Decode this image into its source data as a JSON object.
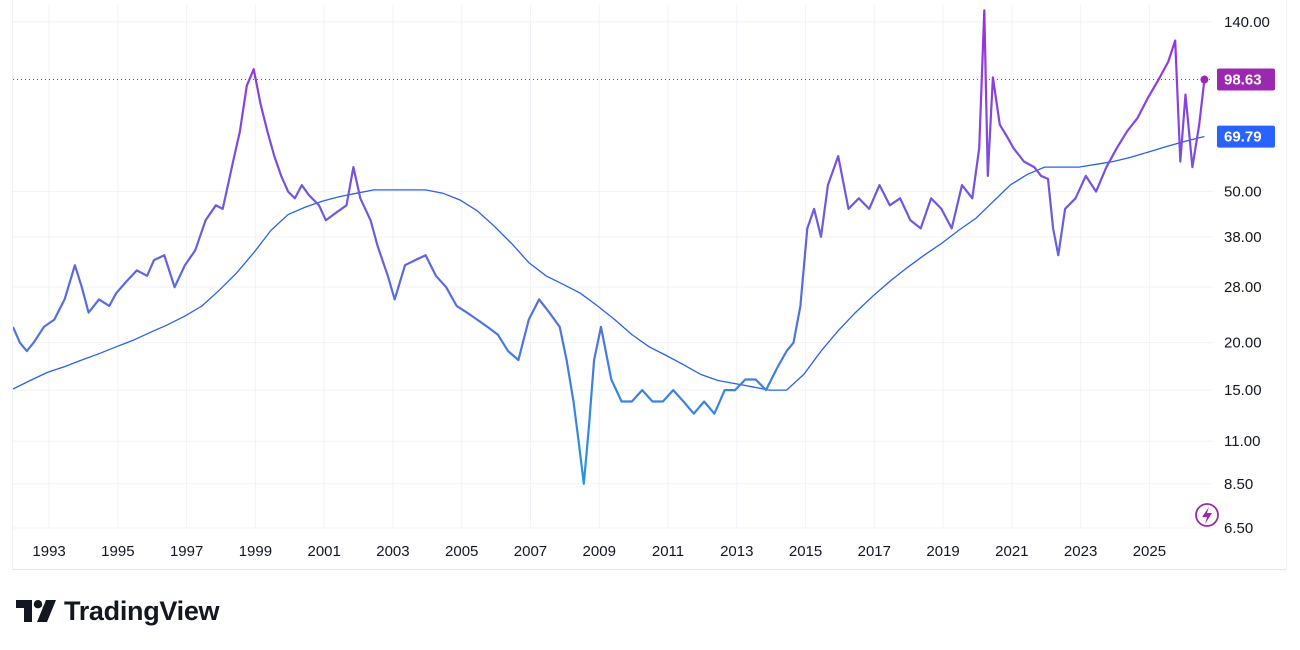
{
  "brand": {
    "name": "TradingView",
    "icon": "tradingview-logo-icon"
  },
  "colors": {
    "price_start": "#1e9be0",
    "price_mid": "#6a5ce0",
    "price_end": "#a22bdf",
    "ma": "#2862e8",
    "price_badge": "#9c27b0",
    "ma_badge": "#2962ff",
    "grid": "#f0f3fa"
  },
  "chart_data": {
    "type": "line",
    "y_scale": "log",
    "ylim": [
      6.5,
      155
    ],
    "xlim": [
      1992.0,
      2026.9
    ],
    "y_ticks": [
      "140.00",
      "98.63",
      "69.79",
      "50.00",
      "38.00",
      "28.00",
      "20.00",
      "15.00",
      "11.00",
      "8.50",
      "6.50"
    ],
    "x_ticks": [
      "1993",
      "1995",
      "1997",
      "1999",
      "2001",
      "2003",
      "2005",
      "2007",
      "2009",
      "2011",
      "2013",
      "2015",
      "2017",
      "2019",
      "2021",
      "2023",
      "2025"
    ],
    "grid": true,
    "last_price": {
      "label": "98.63",
      "value": 98.63
    },
    "last_ma": {
      "label": "69.79",
      "value": 69.79
    },
    "series": [
      {
        "kind": "price",
        "x": [
          1992.0,
          1992.2,
          1992.4,
          1992.6,
          1992.9,
          1993.2,
          1993.5,
          1993.8,
          1994.0,
          1994.2,
          1994.5,
          1994.8,
          1995.0,
          1995.3,
          1995.6,
          1995.9,
          1996.1,
          1996.4,
          1996.7,
          1997.0,
          1997.3,
          1997.6,
          1997.9,
          1998.1,
          1998.4,
          1998.6,
          1998.8,
          1999.0,
          1999.2,
          1999.4,
          1999.6,
          1999.8,
          2000.0,
          2000.2,
          2000.4,
          2000.6,
          2000.9,
          2001.1,
          2001.4,
          2001.7,
          2001.9,
          2002.1,
          2002.4,
          2002.6,
          2002.9,
          2003.1,
          2003.4,
          2003.7,
          2004.0,
          2004.3,
          2004.6,
          2004.9,
          2005.2,
          2005.5,
          2005.8,
          2006.1,
          2006.4,
          2006.7,
          2007.0,
          2007.3,
          2007.6,
          2007.9,
          2008.1,
          2008.3,
          2008.45,
          2008.6,
          2008.75,
          2008.9,
          2009.1,
          2009.4,
          2009.7,
          2010.0,
          2010.3,
          2010.6,
          2010.9,
          2011.2,
          2011.5,
          2011.8,
          2012.1,
          2012.4,
          2012.7,
          2013.0,
          2013.3,
          2013.6,
          2013.9,
          2014.2,
          2014.5,
          2014.7,
          2014.9,
          2015.1,
          2015.3,
          2015.5,
          2015.7,
          2016.0,
          2016.3,
          2016.6,
          2016.9,
          2017.2,
          2017.5,
          2017.8,
          2018.1,
          2018.4,
          2018.7,
          2019.0,
          2019.3,
          2019.6,
          2019.9,
          2020.1,
          2020.25,
          2020.35,
          2020.5,
          2020.7,
          2020.9,
          2021.1,
          2021.4,
          2021.7,
          2021.9,
          2022.1,
          2022.25,
          2022.4,
          2022.6,
          2022.9,
          2023.2,
          2023.5,
          2023.8,
          2024.1,
          2024.4,
          2024.7,
          2025.0,
          2025.3,
          2025.6,
          2025.8,
          2025.95,
          2026.1,
          2026.3,
          2026.5,
          2026.65
        ],
        "y": [
          22,
          20,
          19,
          20,
          22,
          23,
          26,
          32,
          28,
          24,
          26,
          25,
          27,
          29,
          31,
          30,
          33,
          34,
          28,
          32,
          35,
          42,
          46,
          45,
          60,
          72,
          95,
          105,
          85,
          72,
          62,
          55,
          50,
          48,
          52,
          49,
          46,
          42,
          44,
          46,
          58,
          48,
          42,
          36,
          30,
          26,
          32,
          33,
          34,
          30,
          28,
          25,
          24,
          23,
          22,
          21,
          19,
          18,
          23,
          26,
          24,
          22,
          18,
          14,
          11,
          8.5,
          12,
          18,
          22,
          16,
          14,
          14,
          15,
          14,
          14,
          15,
          14,
          13,
          14,
          13,
          15,
          15,
          16,
          16,
          15,
          17,
          19,
          20,
          25,
          40,
          45,
          38,
          52,
          62,
          45,
          48,
          45,
          52,
          46,
          48,
          42,
          40,
          48,
          45,
          40,
          52,
          48,
          65,
          150,
          55,
          100,
          75,
          70,
          65,
          60,
          58,
          55,
          54,
          40,
          34,
          45,
          48,
          55,
          50,
          58,
          65,
          72,
          78,
          88,
          98,
          110,
          125,
          60,
          90,
          58,
          75,
          98.6
        ]
      },
      {
        "kind": "moving-average",
        "x": [
          1992.0,
          1992.5,
          1993.0,
          1993.5,
          1994.0,
          1994.5,
          1995.0,
          1995.5,
          1996.0,
          1996.5,
          1997.0,
          1997.5,
          1998.0,
          1998.5,
          1999.0,
          1999.5,
          2000.0,
          2000.5,
          2001.0,
          2001.5,
          2002.0,
          2002.5,
          2003.0,
          2003.5,
          2004.0,
          2004.5,
          2005.0,
          2005.5,
          2006.0,
          2006.5,
          2007.0,
          2007.5,
          2008.0,
          2008.5,
          2009.0,
          2009.5,
          2010.0,
          2010.5,
          2011.0,
          2011.5,
          2012.0,
          2012.5,
          2013.0,
          2013.5,
          2014.0,
          2014.5,
          2015.0,
          2015.5,
          2016.0,
          2016.5,
          2017.0,
          2017.5,
          2018.0,
          2018.5,
          2019.0,
          2019.5,
          2020.0,
          2020.5,
          2021.0,
          2021.5,
          2022.0,
          2022.5,
          2023.0,
          2023.5,
          2024.0,
          2024.5,
          2025.0,
          2025.5,
          2026.0,
          2026.5,
          2026.65
        ],
        "y": [
          15.1,
          15.9,
          16.7,
          17.3,
          18.0,
          18.7,
          19.5,
          20.3,
          21.3,
          22.3,
          23.5,
          25.0,
          27.5,
          30.5,
          34.5,
          39.5,
          43.5,
          45.5,
          47.2,
          48.5,
          49.5,
          50.5,
          50.5,
          50.5,
          50.5,
          49.5,
          47.5,
          44.5,
          40.5,
          36.5,
          32.5,
          30.0,
          28.5,
          27.0,
          25.0,
          23.0,
          21.0,
          19.5,
          18.5,
          17.5,
          16.5,
          15.9,
          15.6,
          15.3,
          15.0,
          15.0,
          16.5,
          19.0,
          21.5,
          24.0,
          26.5,
          29.0,
          31.5,
          34.0,
          36.5,
          39.5,
          42.5,
          47.0,
          52.0,
          55.5,
          58.0,
          58.0,
          58.0,
          59.0,
          60.0,
          61.5,
          63.5,
          65.5,
          67.5,
          69.3,
          69.8
        ]
      }
    ]
  }
}
